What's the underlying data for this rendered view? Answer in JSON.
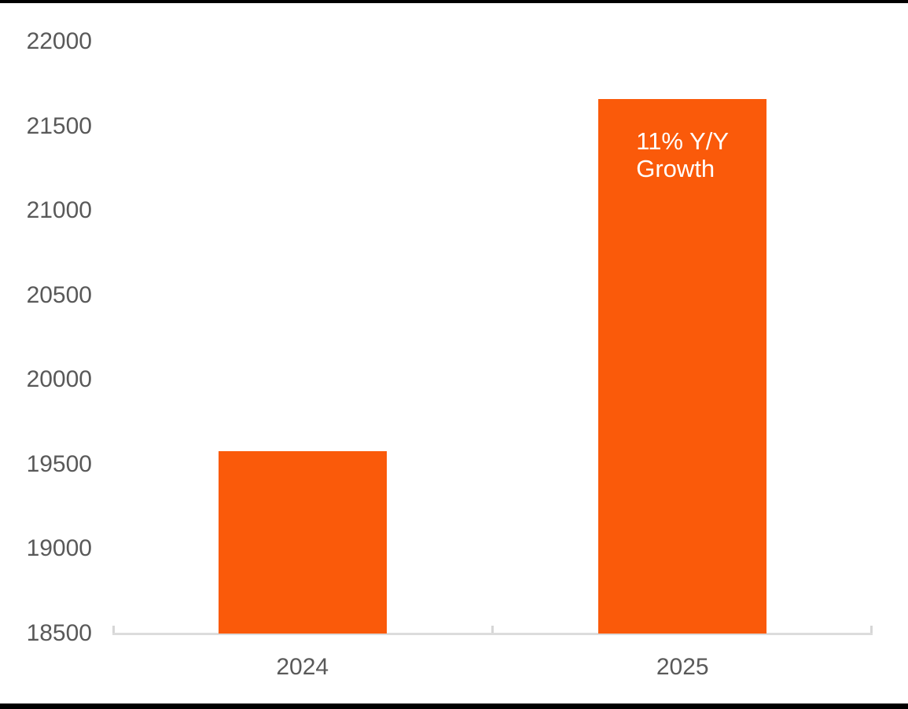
{
  "page": {
    "background_color": "#ffffff",
    "top_border_color": "#000000",
    "bottom_border_color": "#000000"
  },
  "chart_data": {
    "type": "bar",
    "title": "",
    "xlabel": "",
    "ylabel": "",
    "categories": [
      "2024",
      "2025"
    ],
    "values": [
      19580,
      21660
    ],
    "bar_color": "#fa5a0a",
    "ylim": [
      18500,
      22000
    ],
    "ytick_step": 500,
    "yticks": [
      22000,
      21500,
      21000,
      20500,
      20000,
      19500,
      19000,
      18500
    ],
    "grid": false,
    "legend": "none",
    "axis_label_color": "#595959",
    "axis_line_color": "#dcdcdc",
    "annotation": {
      "text": "11% Y/Y Growth",
      "attached_to_category": "2025",
      "text_color": "#ffffff"
    }
  }
}
